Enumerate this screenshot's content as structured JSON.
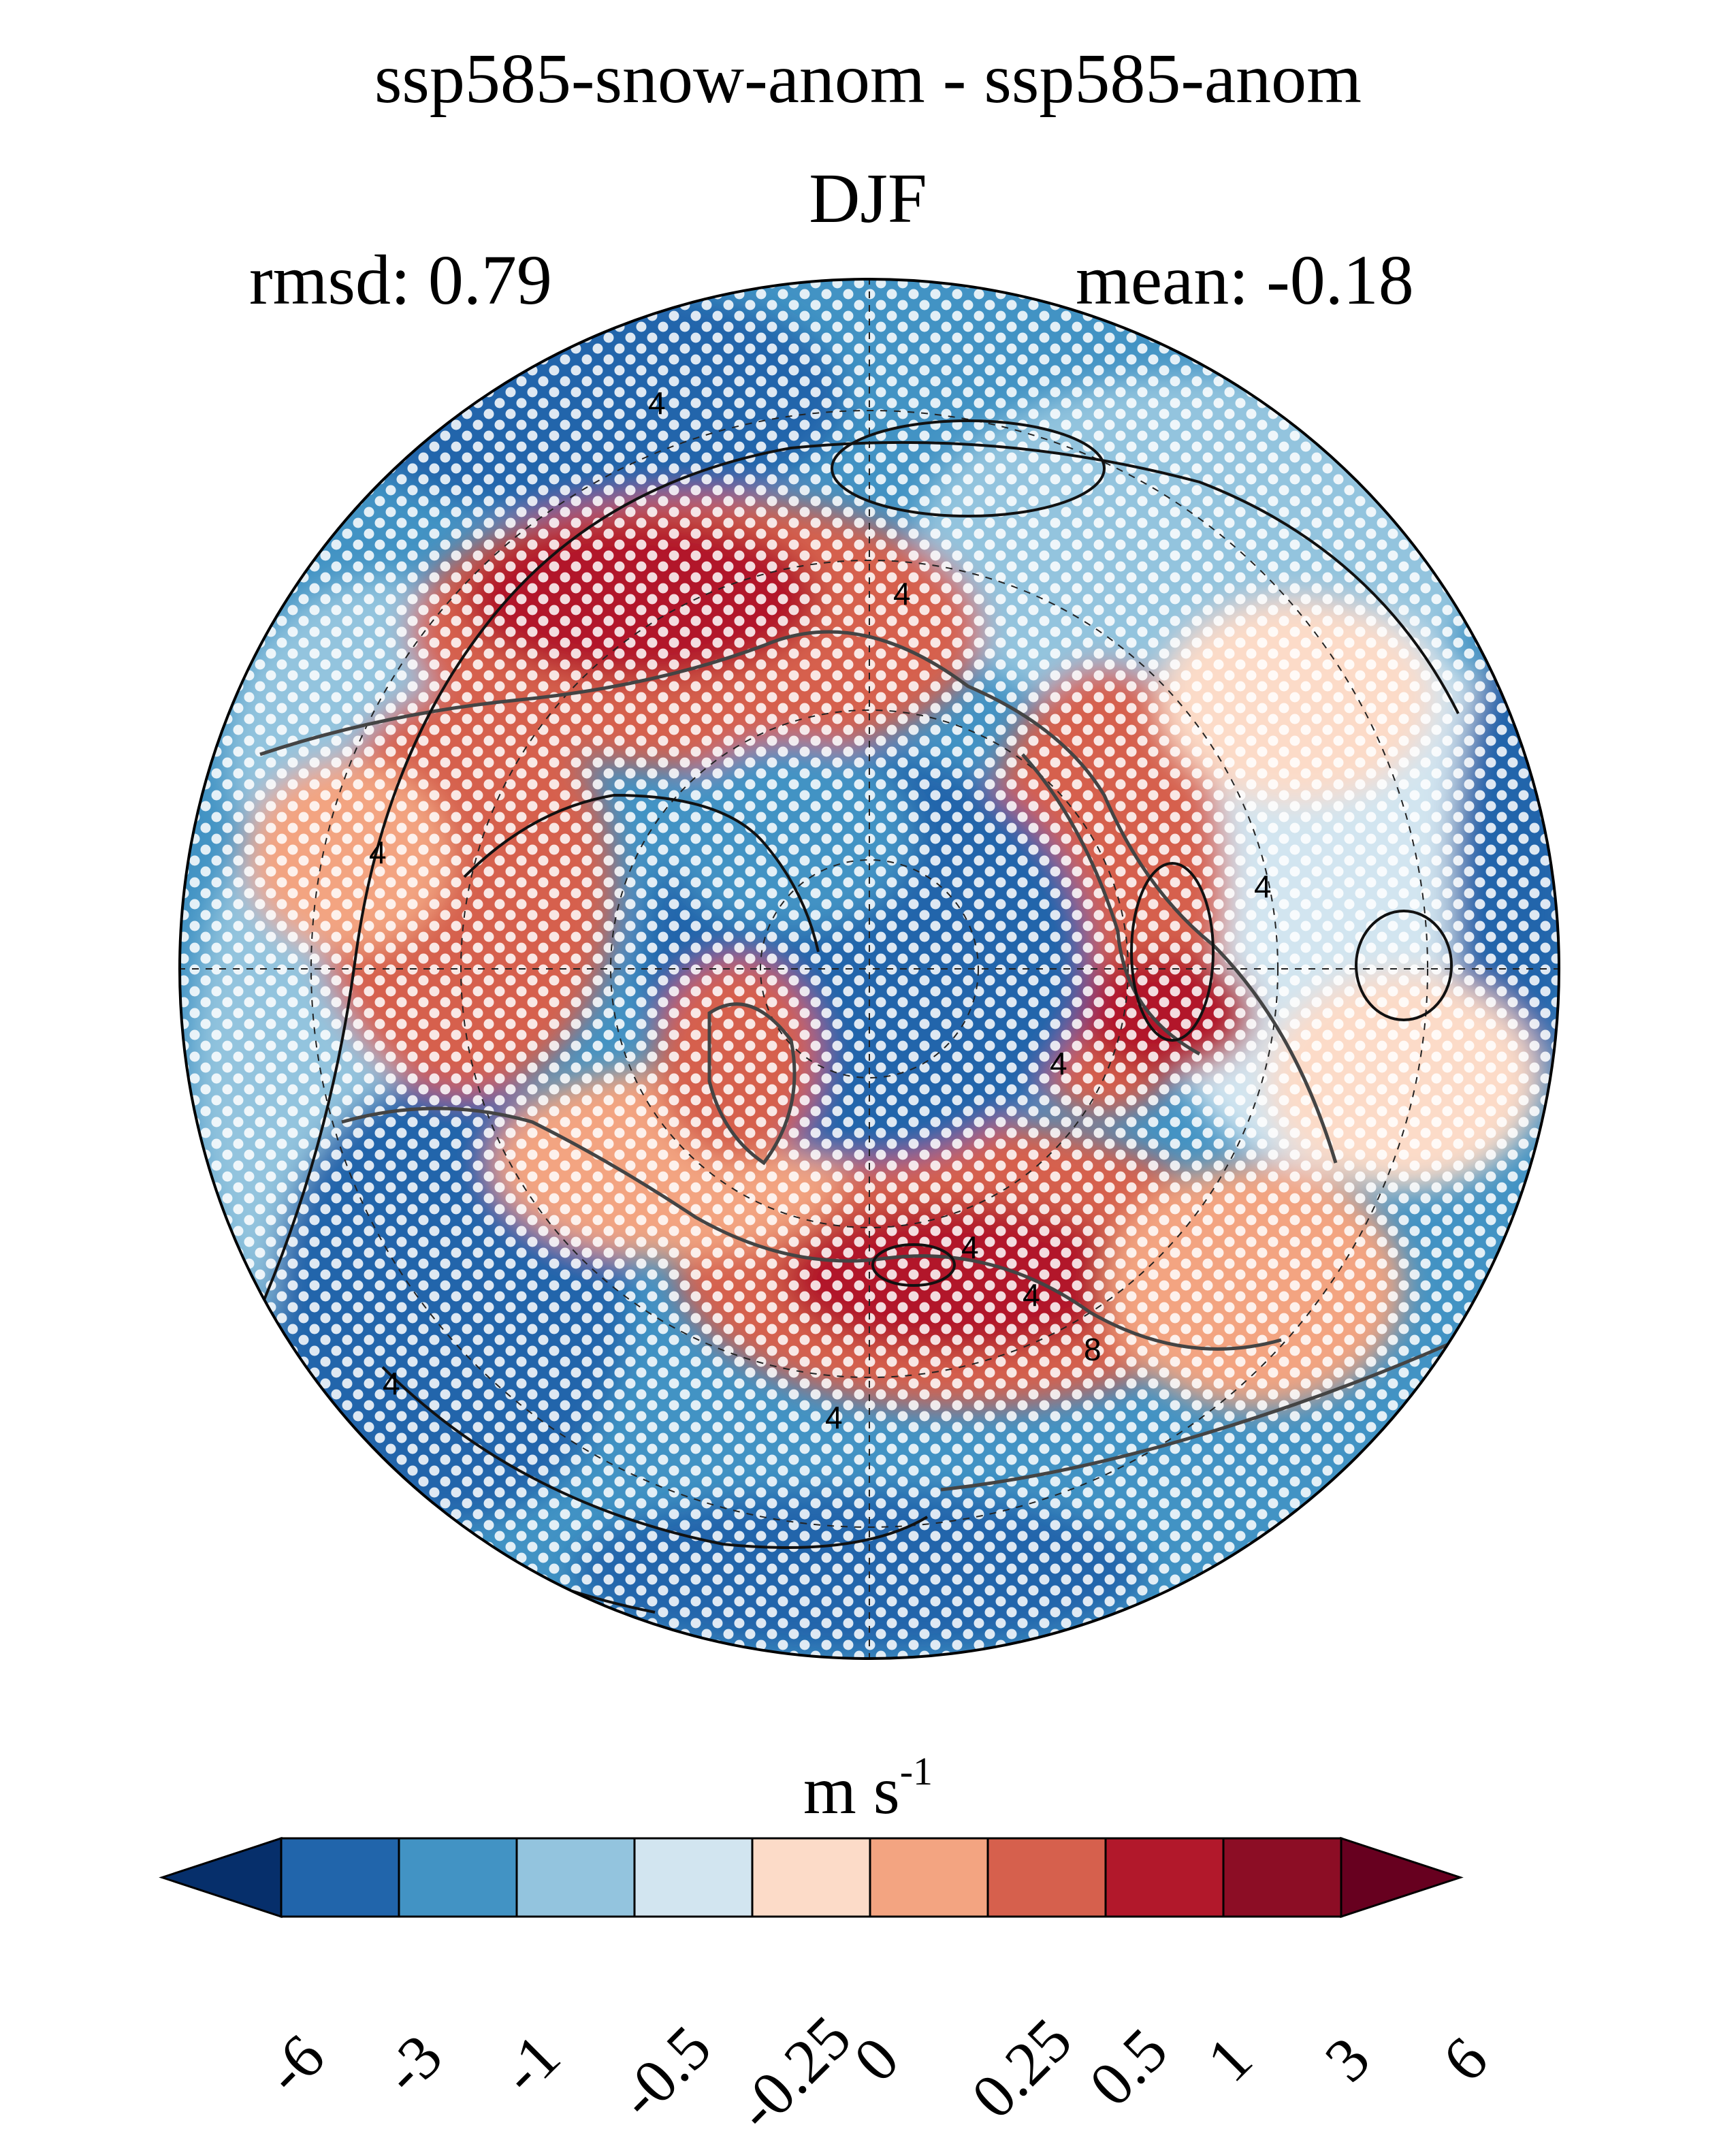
{
  "title": "ssp585-snow-anom - ssp585-anom",
  "subtitle": "DJF",
  "stats": {
    "rmsd": "rmsd: 0.79",
    "mean": "mean: -0.18"
  },
  "colorbar": {
    "units": "m s",
    "units_exponent": "-1",
    "ticks": [
      "-6",
      "-3",
      "-1",
      "-0.5",
      "-0.25",
      "0",
      "0.25",
      "0.5",
      "1",
      "3",
      "6"
    ],
    "colors": [
      "#062f6b",
      "#2165ab",
      "#4293c4",
      "#93c4de",
      "#d2e5f0",
      "#fcdbc8",
      "#f3a481",
      "#d6604d",
      "#b2182b",
      "#8c0d25",
      "#67001f"
    ],
    "extend": "both"
  },
  "map": {
    "projection": "north-polar-stereographic",
    "contour_labels": [
      "4",
      "4",
      "4",
      "4",
      "4",
      "4",
      "4",
      "8",
      "4",
      "4"
    ],
    "stippling": "white dots"
  }
}
